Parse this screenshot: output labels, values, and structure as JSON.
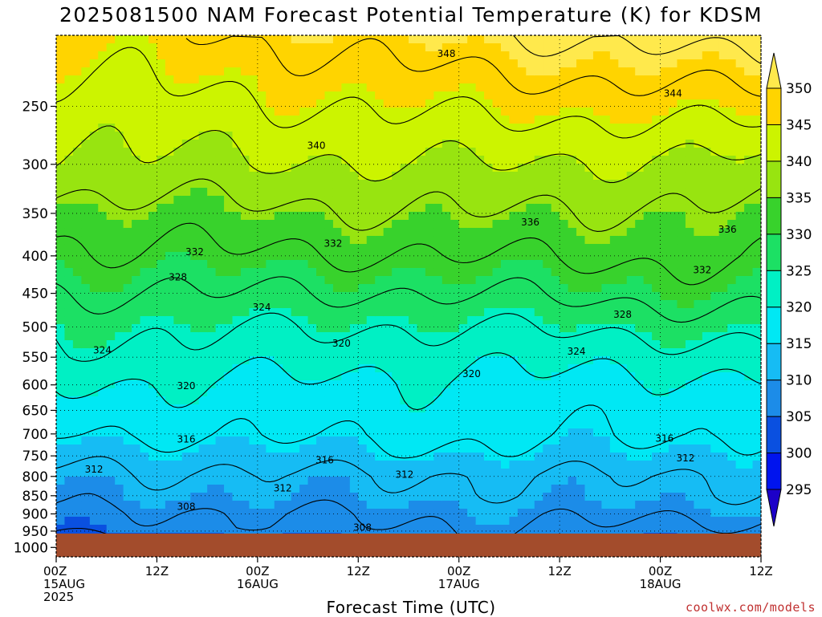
{
  "title": "2025081500 NAM Forecast Potential Temperature (K) for KDSM",
  "credit": "coolwx.com/models",
  "chart_data": {
    "type": "heatmap",
    "title": "2025081500 NAM Forecast Potential Temperature (K) for KDSM",
    "xlabel": "Forecast Time (UTC)",
    "ylabel": "",
    "x_ticks": [
      {
        "hour": 0,
        "label": "00Z",
        "sub1": "15AUG",
        "sub2": "2025"
      },
      {
        "hour": 12,
        "label": "12Z",
        "sub1": "",
        "sub2": ""
      },
      {
        "hour": 24,
        "label": "00Z",
        "sub1": "16AUG",
        "sub2": ""
      },
      {
        "hour": 36,
        "label": "12Z",
        "sub1": "",
        "sub2": ""
      },
      {
        "hour": 48,
        "label": "00Z",
        "sub1": "17AUG",
        "sub2": ""
      },
      {
        "hour": 60,
        "label": "12Z",
        "sub1": "",
        "sub2": ""
      },
      {
        "hour": 72,
        "label": "00Z",
        "sub1": "18AUG",
        "sub2": ""
      },
      {
        "hour": 84,
        "label": "12Z",
        "sub1": "",
        "sub2": ""
      }
    ],
    "xlim": [
      0,
      84
    ],
    "y_axis": "pressure (hPa), log scale, inverted",
    "ylim": [
      1030,
      200
    ],
    "y_ticks": [
      250,
      300,
      350,
      400,
      450,
      500,
      550,
      600,
      650,
      700,
      750,
      800,
      850,
      900,
      950,
      1000
    ],
    "grid": "dotted",
    "colorbar": {
      "levels": [
        295,
        300,
        305,
        310,
        315,
        320,
        325,
        330,
        335,
        340,
        345,
        350
      ],
      "colors": [
        "#1c00c8",
        "#0014ee",
        "#0a50e0",
        "#1c8ce8",
        "#16bcf4",
        "#00e8f4",
        "#00f0c4",
        "#1ce064",
        "#38d22c",
        "#98e410",
        "#ccf400",
        "#ffd400",
        "#ffe94c"
      ],
      "extend": "both"
    },
    "terrain_color": "#a34c2c",
    "surface_pressure_approx": 975,
    "sample_profiles": [
      {
        "hour": 0,
        "p": [
          975,
          960,
          940,
          900,
          860,
          800,
          750,
          700,
          650,
          600,
          550,
          500,
          400,
          350,
          300,
          250
        ],
        "theta": [
          301,
          304,
          306,
          307,
          309,
          311,
          313,
          316,
          318,
          320,
          323,
          325,
          331,
          334,
          339,
          342
        ]
      },
      {
        "hour": 48,
        "p": [
          975,
          940,
          900,
          850,
          800,
          750,
          700,
          650,
          600,
          550,
          500,
          450,
          400,
          350,
          300,
          250
        ],
        "theta": [
          307,
          308,
          309,
          311,
          312,
          315,
          317,
          318,
          319,
          321,
          324,
          328,
          332,
          336,
          340,
          345
        ]
      },
      {
        "hour": 84,
        "p": [
          975,
          940,
          900,
          850,
          800,
          750,
          700,
          650,
          600,
          550,
          500,
          450,
          400,
          350,
          300,
          250
        ],
        "theta": [
          305,
          307,
          309,
          311,
          312,
          314,
          316,
          317,
          319,
          322,
          326,
          330,
          333,
          335,
          339,
          346
        ]
      }
    ],
    "contour_labels": [
      {
        "text": "348",
        "hour": 46.5,
        "p": 212
      },
      {
        "text": "344",
        "hour": 73.5,
        "p": 240
      },
      {
        "text": "340",
        "hour": 31.0,
        "p": 283
      },
      {
        "text": "336",
        "hour": 56.5,
        "p": 360
      },
      {
        "text": "336",
        "hour": 80.0,
        "p": 368
      },
      {
        "text": "332",
        "hour": 16.5,
        "p": 395
      },
      {
        "text": "332",
        "hour": 33.0,
        "p": 385
      },
      {
        "text": "332",
        "hour": 77.0,
        "p": 418
      },
      {
        "text": "328",
        "hour": 14.5,
        "p": 428
      },
      {
        "text": "328",
        "hour": 67.5,
        "p": 481
      },
      {
        "text": "324",
        "hour": 24.5,
        "p": 470
      },
      {
        "text": "324",
        "hour": 5.5,
        "p": 538
      },
      {
        "text": "324",
        "hour": 62.0,
        "p": 540
      },
      {
        "text": "320",
        "hour": 34.0,
        "p": 527
      },
      {
        "text": "320",
        "hour": 15.5,
        "p": 602
      },
      {
        "text": "320",
        "hour": 49.5,
        "p": 580
      },
      {
        "text": "316",
        "hour": 15.5,
        "p": 712
      },
      {
        "text": "316",
        "hour": 32.0,
        "p": 760
      },
      {
        "text": "316",
        "hour": 72.5,
        "p": 710
      },
      {
        "text": "312",
        "hour": 4.5,
        "p": 782
      },
      {
        "text": "312",
        "hour": 27.0,
        "p": 830
      },
      {
        "text": "312",
        "hour": 41.5,
        "p": 795
      },
      {
        "text": "312",
        "hour": 75.0,
        "p": 755
      },
      {
        "text": "308",
        "hour": 15.5,
        "p": 880
      },
      {
        "text": "308",
        "hour": 36.5,
        "p": 940
      }
    ]
  }
}
